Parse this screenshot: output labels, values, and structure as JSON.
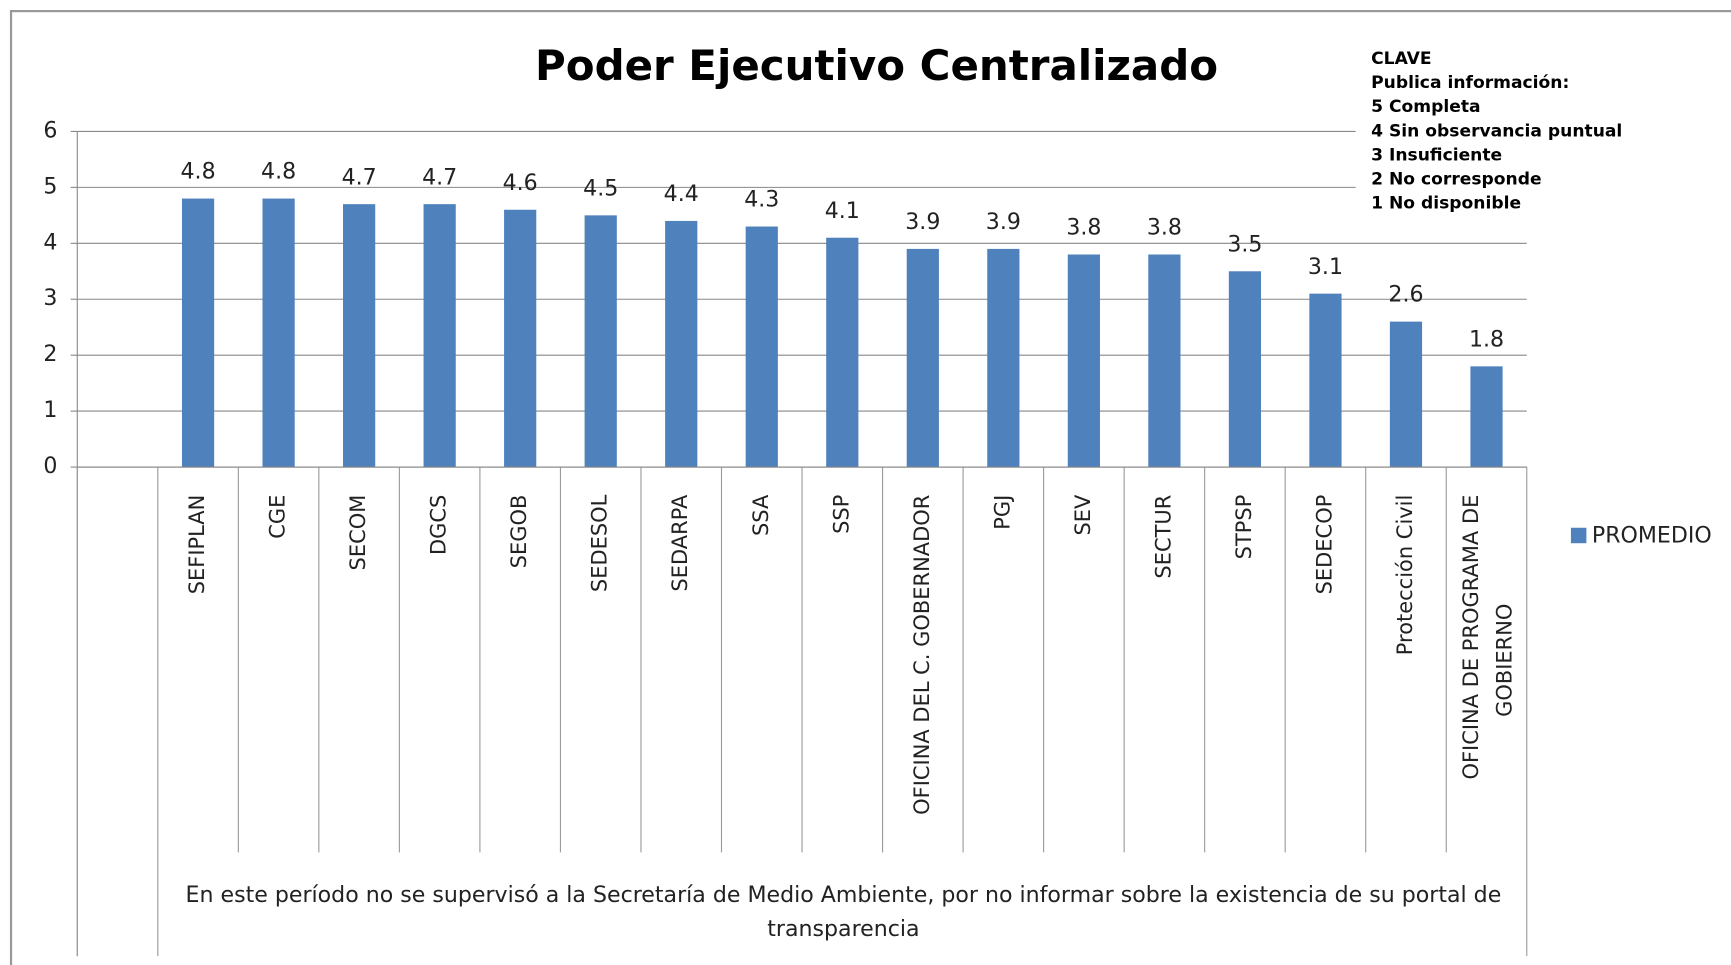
{
  "chart_data": {
    "type": "bar",
    "title": "Poder Ejecutivo Centralizado",
    "categories": [
      null,
      "SEFIPLAN",
      "CGE",
      "SECOM",
      "DGCS",
      "SEGOB",
      "SEDESOL",
      "SEDARPA",
      "SSA",
      "SSP",
      "OFICINA DEL C. GOBERNADOR",
      "PGJ",
      "SEV",
      "SECTUR",
      "STPSP",
      "SEDECOP",
      "Protección Civil",
      "OFICINA DE PROGRAMA DE GOBIERNO"
    ],
    "series": [
      {
        "name": "PROMEDIO",
        "color": "#4f81bd",
        "values": [
          null,
          4.8,
          4.8,
          4.7,
          4.7,
          4.6,
          4.5,
          4.4,
          4.3,
          4.1,
          3.9,
          3.9,
          3.8,
          3.8,
          3.5,
          3.1,
          2.6,
          1.8
        ]
      }
    ],
    "ylim": [
      0,
      6
    ],
    "yticks": [
      0,
      1,
      2,
      3,
      4,
      5,
      6
    ],
    "grid": true,
    "legend": "right",
    "key": [
      "CLAVE",
      "Publica información:",
      "5  Completa",
      "4  Sin observancia puntual",
      "3  Insuficiente",
      "2  No corresponde",
      " 1 No disponible"
    ],
    "footnote": "En este período no se supervisó a la Secretaría de Medio Ambiente, por no informar sobre la existencia de su portal de transparencia"
  }
}
